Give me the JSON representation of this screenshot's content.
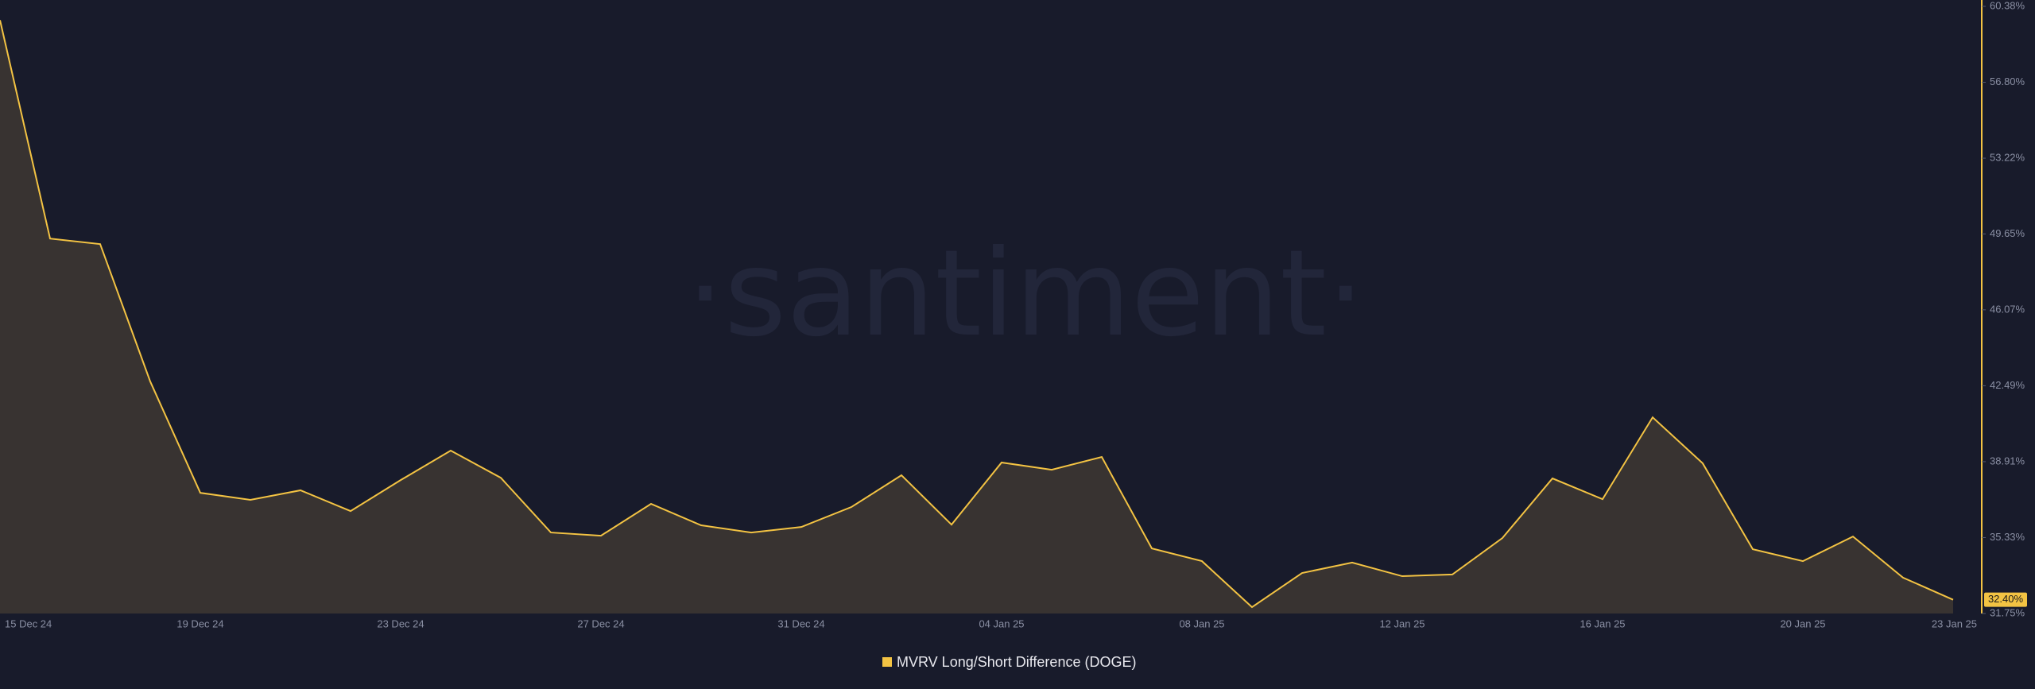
{
  "chart_data": {
    "type": "line",
    "watermark": "·santiment·",
    "categories": [
      "15 Dec 24",
      null,
      null,
      null,
      "19 Dec 24",
      null,
      null,
      null,
      "23 Dec 24",
      null,
      null,
      null,
      "27 Dec 24",
      null,
      null,
      null,
      "31 Dec 24",
      null,
      null,
      null,
      "04 Jan 25",
      null,
      null,
      null,
      "08 Jan 25",
      null,
      null,
      null,
      "12 Jan 25",
      null,
      null,
      null,
      "16 Jan 25",
      null,
      null,
      null,
      "20 Jan 25",
      null,
      null,
      "23 Jan 25"
    ],
    "series": [
      {
        "name": "MVRV Long/Short Difference (DOGE)",
        "color": "#f3c343",
        "values": [
          59.73,
          49.43,
          49.17,
          42.69,
          37.44,
          37.11,
          37.56,
          36.58,
          38.04,
          39.43,
          38.15,
          35.57,
          35.42,
          36.92,
          35.91,
          35.57,
          35.83,
          36.77,
          38.27,
          35.94,
          38.87,
          38.53,
          39.13,
          34.82,
          34.22,
          32.05,
          33.66,
          34.15,
          33.51,
          33.59,
          35.31,
          38.12,
          37.14,
          41.0,
          38.83,
          34.78,
          34.22,
          35.38,
          33.44,
          32.4
        ],
        "last_value_label": "32.40%"
      }
    ],
    "ylim": [
      31.75,
      60.38
    ],
    "yticks": [
      {
        "value": 31.75,
        "label": "31.75%"
      },
      {
        "value": 35.33,
        "label": "35.33%"
      },
      {
        "value": 38.91,
        "label": "38.91%"
      },
      {
        "value": 42.49,
        "label": "42.49%"
      },
      {
        "value": 46.07,
        "label": "46.07%"
      },
      {
        "value": 49.65,
        "label": "49.65%"
      },
      {
        "value": 53.22,
        "label": "53.22%"
      },
      {
        "value": 56.8,
        "label": "56.80%"
      },
      {
        "value": 60.38,
        "label": "60.38%"
      }
    ],
    "grid": false
  }
}
